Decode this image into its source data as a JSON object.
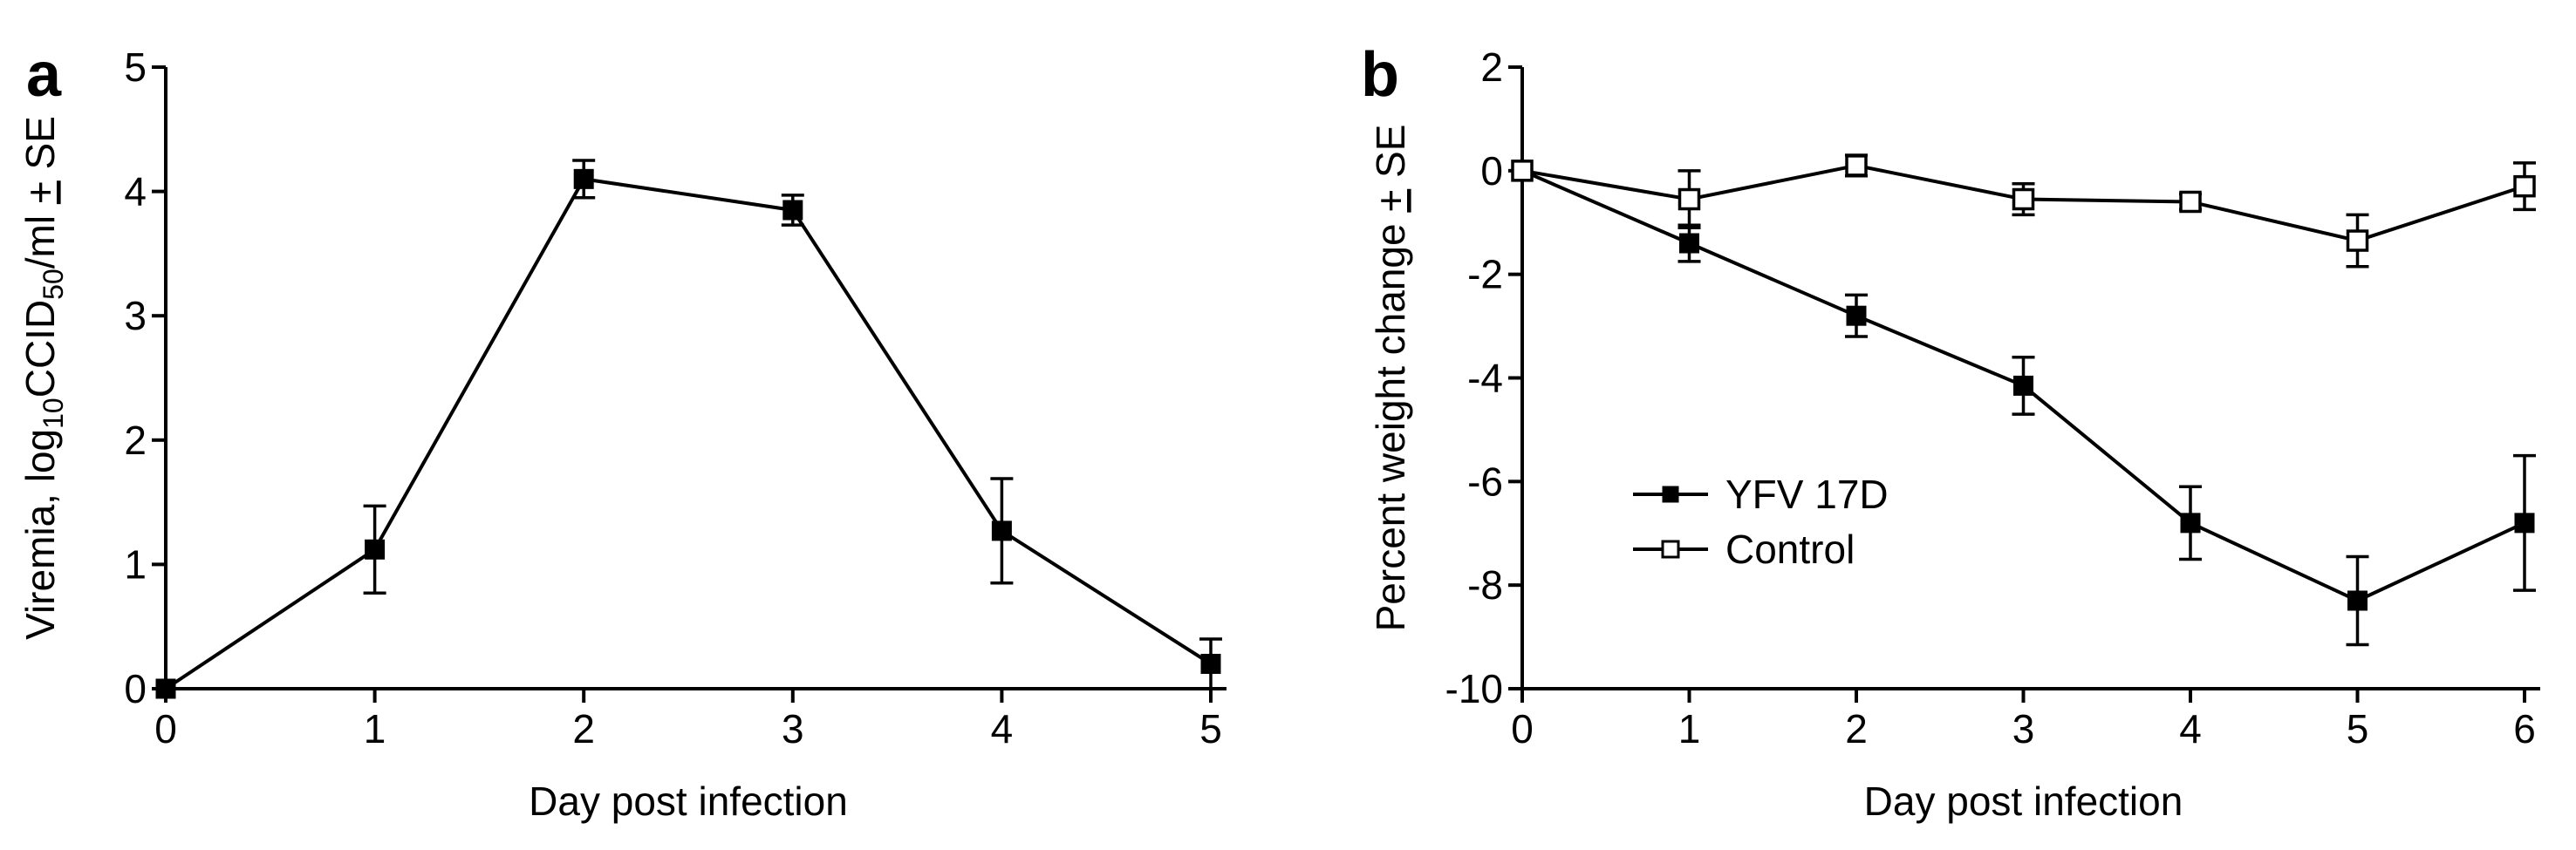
{
  "chart_data": [
    {
      "panel": "a",
      "type": "line",
      "xlabel": "Day post infection",
      "ylabel_parts": [
        "Viremia,  log",
        "10",
        "CCID",
        "50",
        "/ml ",
        "+",
        " SE"
      ],
      "xlim": [
        0,
        5
      ],
      "ylim": [
        0,
        5
      ],
      "x_ticks": [
        0,
        1,
        2,
        3,
        4,
        5
      ],
      "y_ticks": [
        0,
        1,
        2,
        3,
        4,
        5
      ],
      "series": [
        {
          "name": "",
          "marker": "filled-square",
          "x": [
            0,
            1,
            2,
            3,
            4,
            5
          ],
          "y": [
            0.0,
            1.12,
            4.1,
            3.85,
            1.27,
            0.2
          ],
          "err": [
            0.0,
            0.35,
            0.15,
            0.12,
            0.42,
            0.2
          ]
        }
      ]
    },
    {
      "panel": "b",
      "type": "line",
      "xlabel": "Day post infection",
      "ylabel_parts": [
        "Percent weight change ",
        "+",
        " SE"
      ],
      "xlim": [
        0,
        6
      ],
      "ylim": [
        -10,
        2
      ],
      "x_ticks": [
        0,
        1,
        2,
        3,
        4,
        5,
        6
      ],
      "y_ticks": [
        2,
        0,
        -2,
        -4,
        -6,
        -8,
        -10
      ],
      "legend_position": "center-left",
      "series": [
        {
          "name": "YFV 17D",
          "marker": "filled-square",
          "x": [
            0,
            1,
            2,
            3,
            4,
            5,
            6
          ],
          "y": [
            0,
            -1.4,
            -2.8,
            -4.15,
            -6.8,
            -8.3,
            -6.8
          ],
          "err": [
            0,
            0.35,
            0.4,
            0.55,
            0.7,
            0.85,
            1.3
          ]
        },
        {
          "name": "Control",
          "marker": "open-square",
          "x": [
            0,
            1,
            2,
            3,
            4,
            5,
            6
          ],
          "y": [
            0,
            -0.55,
            0.1,
            -0.55,
            -0.6,
            -1.35,
            -0.3
          ],
          "err": [
            0,
            0.55,
            0.2,
            0.3,
            0.15,
            0.5,
            0.45
          ]
        }
      ]
    }
  ]
}
